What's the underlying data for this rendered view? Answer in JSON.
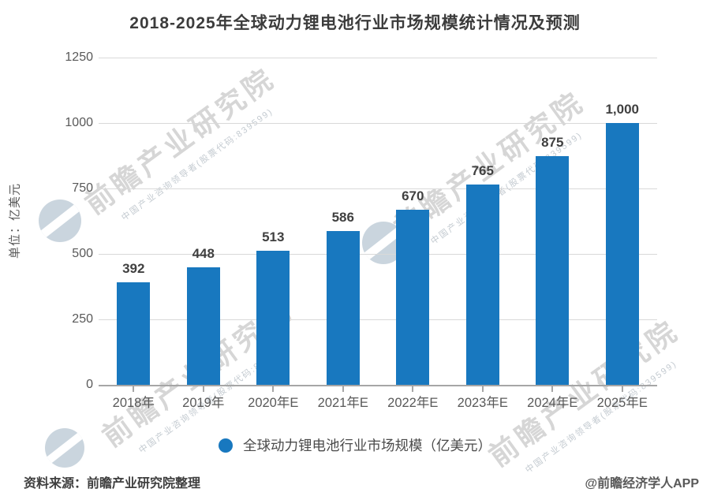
{
  "title": "2018-2025年全球动力锂电池行业市场规模统计情况及预测",
  "y_axis": {
    "unit_label": "单位：亿美元",
    "ticks": [
      1250,
      1000,
      750,
      500,
      250,
      0
    ]
  },
  "chart_data": {
    "type": "bar",
    "title": "2018-2025年全球动力锂电池行业市场规模统计情况及预测",
    "categories": [
      "2018年",
      "2019年",
      "2020年E",
      "2021年E",
      "2022年E",
      "2023年E",
      "2024年E",
      "2025年E"
    ],
    "values": [
      392,
      448,
      513,
      586,
      670,
      765,
      875,
      1000
    ],
    "value_labels": [
      "392",
      "448",
      "513",
      "586",
      "670",
      "765",
      "875",
      "1,000"
    ],
    "series_name": "全球动力锂电池行业市场规模（亿美元）",
    "xlabel": "",
    "ylabel": "单位：亿美元",
    "ylim": [
      0,
      1250
    ],
    "y_tick_step": 250,
    "grid": true,
    "legend_position": "bottom",
    "bar_color": "#1878bf"
  },
  "legend": {
    "label": "全球动力锂电池行业市场规模（亿美元）",
    "dot_color": "#1878bf"
  },
  "footer": {
    "source": "资料来源：前瞻产业研究院整理",
    "credit": "@前瞻经济学人APP"
  },
  "watermark": {
    "text": "前瞻产业研究院",
    "subtext": "中国产业咨询领导者(股票代码:839599)"
  },
  "colors": {
    "bar": "#1878bf",
    "gridline": "#d9d9d9",
    "axis_line": "#a6a6a6",
    "title_text": "#3c3c3c",
    "value_label_text": "#404040",
    "tick_text": "#595959",
    "watermark_text": "#989898",
    "background": "#ffffff"
  }
}
